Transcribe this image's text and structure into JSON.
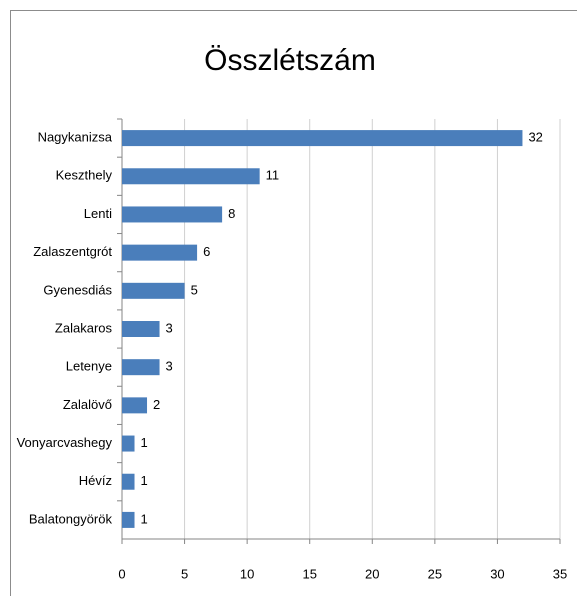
{
  "chart_data": {
    "type": "barh",
    "title": "Összlétszám",
    "categories": [
      "Nagykanizsa",
      "Keszthely",
      "Lenti",
      "Zalaszentgrót",
      "Gyenesdiás",
      "Zalakaros",
      "Letenye",
      "Zalalövő",
      "Vonyarcvashegy",
      "Hévíz",
      "Balatongyörök"
    ],
    "values": [
      32,
      11,
      8,
      6,
      5,
      3,
      3,
      2,
      1,
      1,
      1
    ],
    "color": "#4a7ebb",
    "xlim": [
      0,
      35
    ],
    "xticks": [
      0,
      5,
      10,
      15,
      20,
      25,
      30,
      35
    ],
    "grid": true
  }
}
